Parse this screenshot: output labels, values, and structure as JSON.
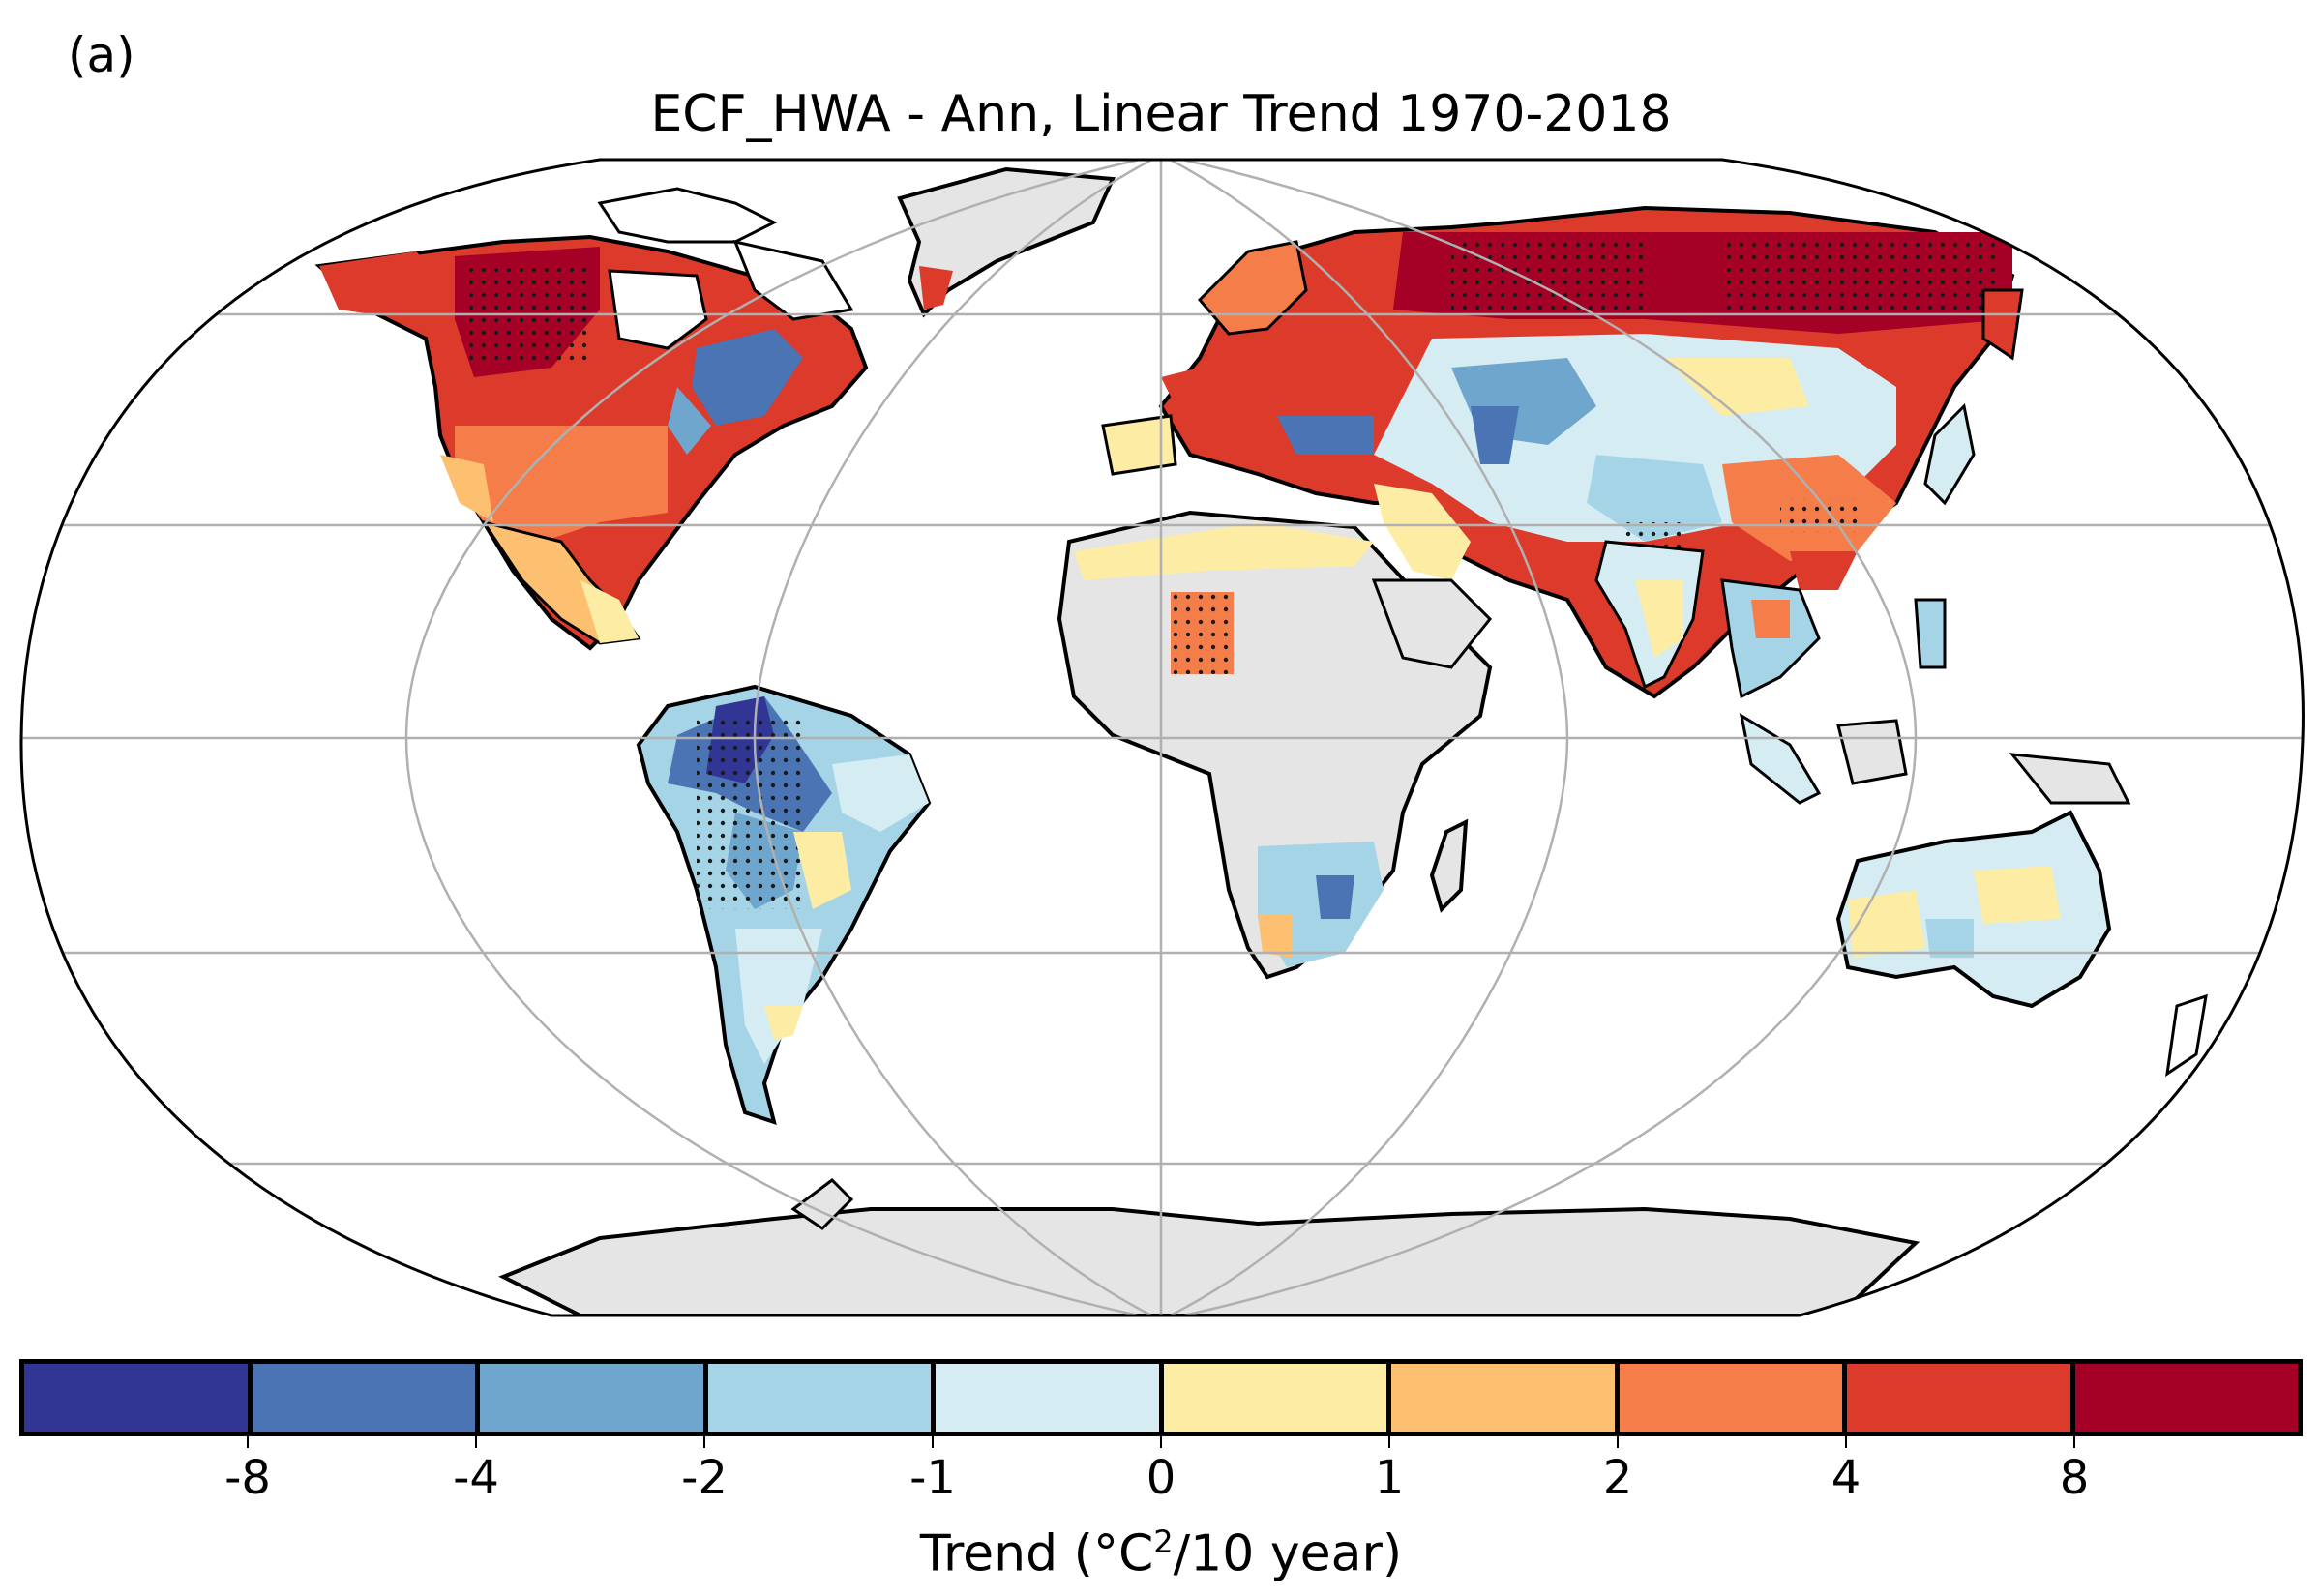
{
  "panel_label": "(a)",
  "title": "ECF_HWA - Ann, Linear Trend 1970-2018",
  "colorbar": {
    "colors": [
      "#313695",
      "#4a74b4",
      "#6ea6cd",
      "#a5d4e7",
      "#d6ecf3",
      "#fdeca4",
      "#fdbf70",
      "#f47d4a",
      "#dc3a2b",
      "#a50026"
    ],
    "tick_labels": [
      "-8",
      "-4",
      "-2",
      "-1",
      "0",
      "1",
      "2",
      "4",
      "8"
    ],
    "label_prefix": "Trend (",
    "label_degree": "°C",
    "label_sup": "2",
    "label_suffix": "/10 year)"
  },
  "map": {
    "projection": "Robinson",
    "land_no_data_color": "#e5e5e5",
    "gridline_color": "#b0b0b0",
    "stippling": "significant trends"
  }
}
